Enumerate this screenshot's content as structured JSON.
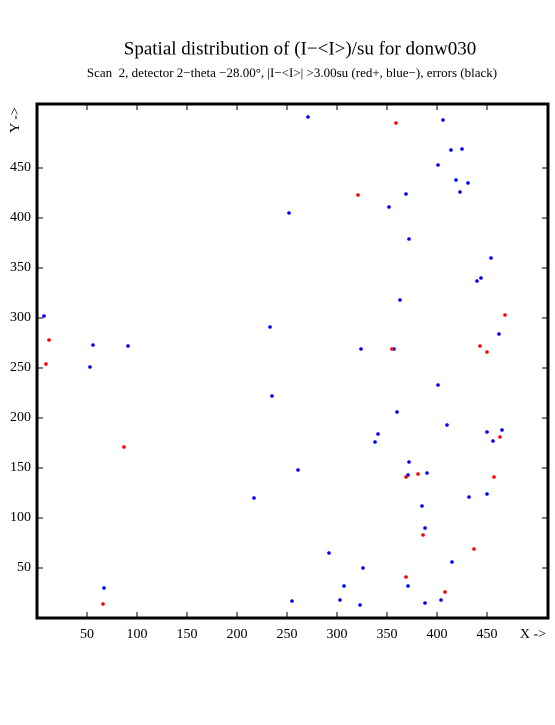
{
  "chart_data": {
    "type": "scatter",
    "title": "Spatial distribution of (I−<I>)/su for donw030",
    "subtitle": "Scan  2, detector 2−theta −28.00°, |I−<I>| >3.00su (red+, blue−), errors (black)",
    "x_label": "X ->",
    "y_label": "Y ->",
    "xlim": [
      0,
      511
    ],
    "ylim": [
      0,
      514
    ],
    "xticks": [
      50,
      100,
      150,
      200,
      250,
      300,
      350,
      400,
      450
    ],
    "yticks": [
      50,
      100,
      150,
      200,
      250,
      300,
      350,
      400,
      450
    ],
    "series": [
      {
        "color": "#0000ff",
        "x": [
          271,
          406,
          414,
          425,
          401,
          419,
          431,
          369,
          423,
          352,
          252,
          372,
          454,
          444,
          440,
          363,
          7,
          233,
          462,
          56,
          91,
          357,
          324,
          53,
          401,
          235,
          360,
          410,
          450,
          465,
          341,
          338,
          456,
          372,
          261,
          371,
          390,
          217,
          432,
          450,
          385,
          388,
          292,
          415,
          326,
          67,
          307,
          371,
          255,
          303,
          323,
          388,
          404
        ],
        "y": [
          501,
          498,
          468,
          469,
          453,
          438,
          435,
          424,
          426,
          411,
          405,
          379,
          360,
          340,
          337,
          318,
          302,
          291,
          284,
          273,
          272,
          269,
          269,
          251,
          233,
          222,
          206,
          193,
          186,
          188,
          184,
          176,
          177,
          156,
          148,
          143,
          145,
          120,
          121,
          124,
          112,
          90,
          65,
          56,
          50,
          30,
          32,
          32,
          17,
          18,
          13,
          15,
          18
        ]
      },
      {
        "color": "#ff0000",
        "x": [
          359,
          321,
          468,
          12,
          443,
          450,
          355,
          9,
          87,
          463,
          457,
          381,
          369,
          386,
          437,
          369,
          408,
          66
        ],
        "y": [
          495,
          423,
          303,
          278,
          272,
          266,
          269,
          254,
          171,
          181,
          141,
          144,
          141,
          83,
          69,
          41,
          26,
          14
        ]
      }
    ]
  }
}
